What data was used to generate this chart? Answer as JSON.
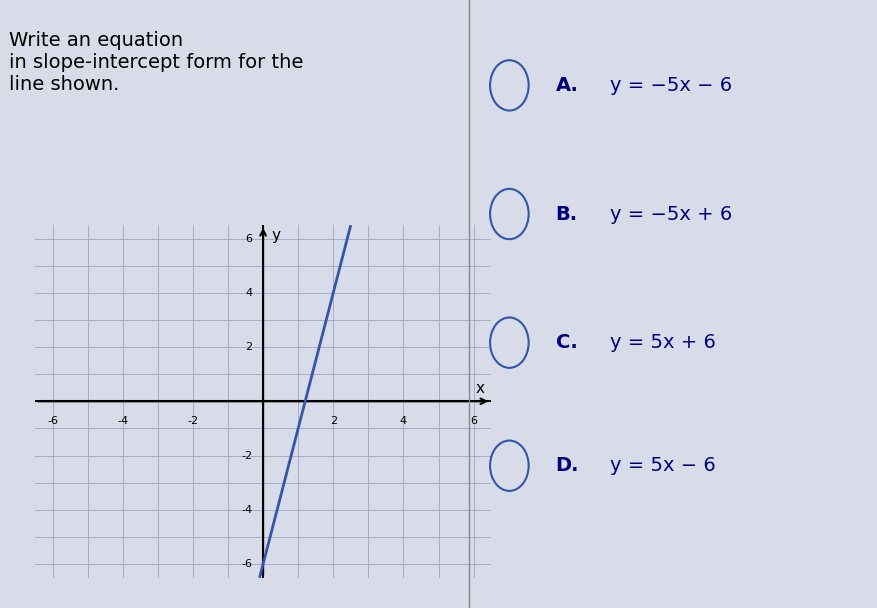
{
  "title_text": "Write an equation\nin slope-intercept form for the\nline shown.",
  "choices": [
    {
      "label": "A.",
      "equation": "y = −5x − 6"
    },
    {
      "label": "B.",
      "equation": "y = −5x + 6"
    },
    {
      "label": "C.",
      "equation": "y = 5x + 6"
    },
    {
      "label": "D.",
      "equation": "y = 5x − 6"
    }
  ],
  "graph_xlim": [
    -6.5,
    6.5
  ],
  "graph_ylim": [
    -6.5,
    6.5
  ],
  "grid_color": "#aaaacc",
  "axis_color": "#000000",
  "line_color": "#3355aa",
  "line_slope": 5,
  "line_intercept": -6,
  "bg_color": "#d8dce8",
  "text_color": "#000080",
  "choice_color": "#000080",
  "circle_color": "#3355aa",
  "divider_color": "#888888",
  "tick_labels_x": [
    -6,
    -4,
    -2,
    2,
    4,
    6
  ],
  "tick_labels_y": [
    -6,
    -4,
    -2,
    2,
    4,
    6
  ]
}
